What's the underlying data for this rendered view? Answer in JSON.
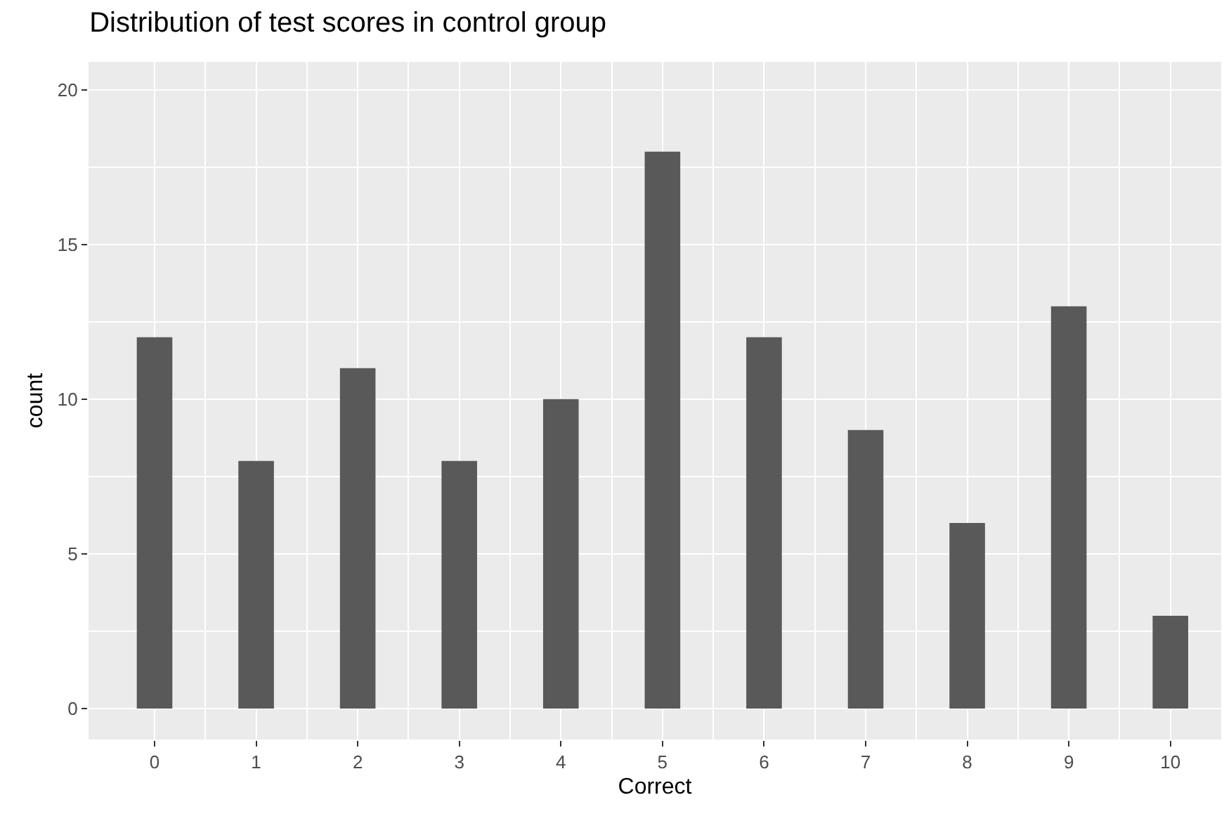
{
  "chart_data": {
    "type": "bar",
    "title": "Distribution of test scores in control group",
    "xlabel": "Correct",
    "ylabel": "count",
    "x": [
      0,
      1,
      2,
      3,
      4,
      5,
      6,
      7,
      8,
      9,
      10
    ],
    "values": [
      12,
      8,
      11,
      8,
      10,
      18,
      12,
      9,
      6,
      13,
      3
    ],
    "color": "#595959",
    "xlim": [
      -0.65,
      10.5
    ],
    "xticks": [
      0,
      1,
      2,
      3,
      4,
      5,
      6,
      7,
      8,
      9,
      10
    ],
    "ylim": [
      -1,
      20.9
    ],
    "yticks": [
      0,
      5,
      10,
      15,
      20
    ],
    "grid": true
  }
}
